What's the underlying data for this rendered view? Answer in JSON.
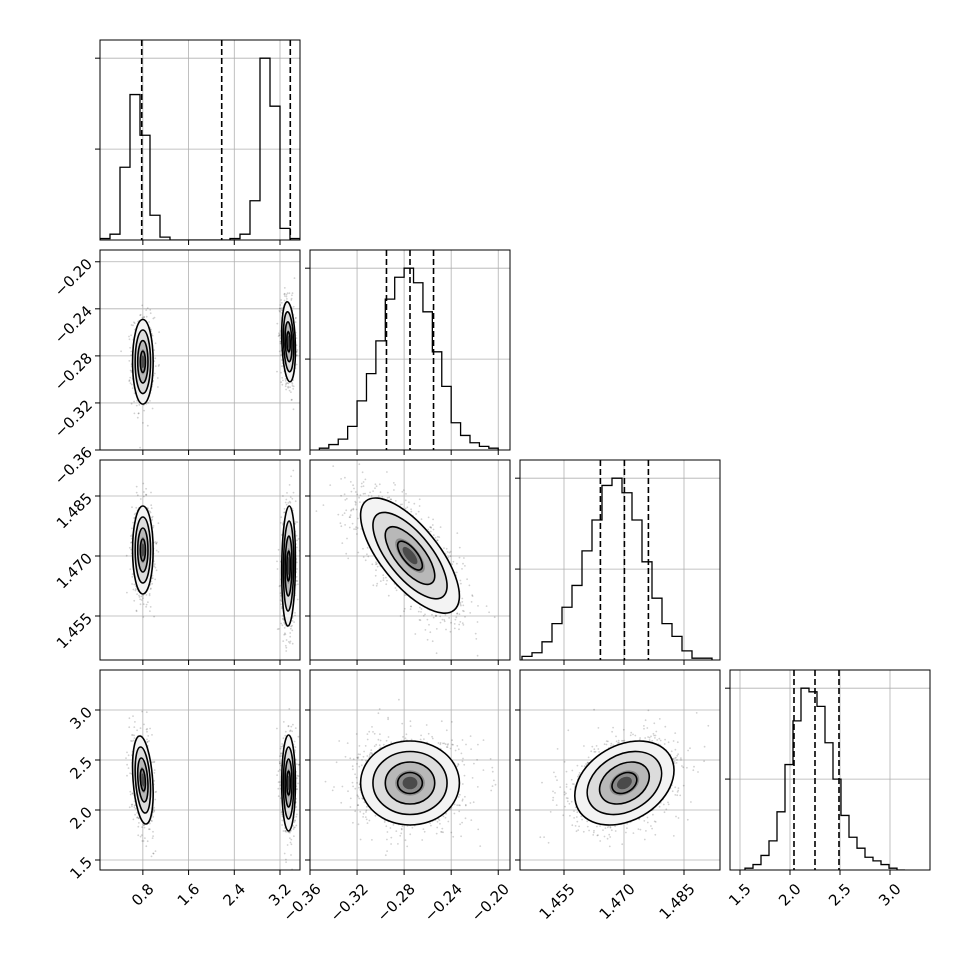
{
  "chart_data": {
    "type": "corner",
    "description_of_panels": "lower-triangle 2D density (scatter + shaded bins + contours), diagonal 1D histograms with dashed quantile lines",
    "parameters": [
      {
        "id": "p0",
        "ticks": [
          0.8,
          1.6,
          2.4,
          3.2
        ],
        "tick_labels": [
          "0.8",
          "1.6",
          "2.4",
          "3.2"
        ],
        "range": [
          0.05,
          3.55
        ],
        "quantiles": [
          0.78,
          2.18,
          3.38
        ],
        "hist": {
          "edges": [
            0.05,
            0.225,
            0.4,
            0.575,
            0.75,
            0.925,
            1.1,
            1.275,
            1.45,
            1.625,
            1.8,
            1.975,
            2.15,
            2.325,
            2.5,
            2.675,
            2.85,
            3.025,
            3.2,
            3.375,
            3.55
          ],
          "counts": [
            0.01,
            0.04,
            0.5,
            1.0,
            0.72,
            0.17,
            0.02,
            0,
            0,
            0,
            0,
            0,
            0,
            0.01,
            0.04,
            0.27,
            1.25,
            0.92,
            0.08,
            0.01
          ]
        }
      },
      {
        "id": "p1",
        "ticks": [
          -0.36,
          -0.32,
          -0.28,
          -0.24,
          -0.2
        ],
        "tick_labels": [
          "−0.36",
          "−0.32",
          "−0.28",
          "−0.24",
          "−0.20"
        ],
        "range": [
          -0.36,
          -0.19
        ],
        "quantiles": [
          -0.295,
          -0.275,
          -0.255
        ],
        "hist": {
          "edges": [
            -0.352,
            -0.344,
            -0.336,
            -0.328,
            -0.32,
            -0.312,
            -0.304,
            -0.296,
            -0.288,
            -0.28,
            -0.272,
            -0.264,
            -0.256,
            -0.248,
            -0.24,
            -0.232,
            -0.224,
            -0.216,
            -0.208,
            -0.2
          ],
          "counts": [
            0.01,
            0.03,
            0.06,
            0.13,
            0.27,
            0.42,
            0.6,
            0.83,
            0.95,
            1.0,
            0.92,
            0.76,
            0.54,
            0.35,
            0.15,
            0.08,
            0.04,
            0.02,
            0.01
          ]
        }
      },
      {
        "id": "p2",
        "ticks": [
          1.455,
          1.47,
          1.485
        ],
        "tick_labels": [
          "1.455",
          "1.470",
          "1.485"
        ],
        "range": [
          1.444,
          1.494
        ],
        "quantiles": [
          1.4641,
          1.4701,
          1.4761
        ],
        "hist": {
          "edges": [
            1.4445,
            1.447,
            1.4495,
            1.452,
            1.4545,
            1.457,
            1.4595,
            1.462,
            1.4645,
            1.467,
            1.4695,
            1.472,
            1.4745,
            1.477,
            1.4795,
            1.482,
            1.4845,
            1.487,
            1.4895,
            1.492
          ],
          "counts": [
            0.02,
            0.04,
            0.1,
            0.2,
            0.29,
            0.41,
            0.6,
            0.77,
            0.96,
            1.0,
            0.92,
            0.77,
            0.54,
            0.34,
            0.2,
            0.13,
            0.05,
            0.01,
            0.01
          ]
        }
      },
      {
        "id": "p3",
        "ticks": [
          1.5,
          2.0,
          2.5,
          3.0
        ],
        "tick_labels": [
          "1.5",
          "2.0",
          "2.5",
          "3.0"
        ],
        "range": [
          1.4,
          3.4
        ],
        "quantiles": [
          2.04,
          2.25,
          2.49
        ],
        "hist": {
          "edges": [
            1.55,
            1.63,
            1.71,
            1.79,
            1.87,
            1.95,
            2.03,
            2.11,
            2.19,
            2.27,
            2.35,
            2.43,
            2.51,
            2.59,
            2.67,
            2.75,
            2.83,
            2.91,
            2.99,
            3.07,
            3.15
          ],
          "counts": [
            0.01,
            0.03,
            0.08,
            0.16,
            0.32,
            0.58,
            0.82,
            1.0,
            0.98,
            0.9,
            0.7,
            0.5,
            0.3,
            0.18,
            0.12,
            0.07,
            0.05,
            0.03,
            0.01,
            0.0
          ]
        }
      }
    ],
    "clusters_2d": {
      "1_0": [
        {
          "cx": 0.8,
          "cy": -0.285,
          "sx": 0.09,
          "sy": 0.018,
          "rho": 0.0,
          "n": 650
        },
        {
          "cx": 3.35,
          "cy": -0.268,
          "sx": 0.06,
          "sy": 0.017,
          "rho": -0.2,
          "n": 700
        }
      ],
      "2_0": [
        {
          "cx": 0.8,
          "cy": 1.4715,
          "sx": 0.09,
          "sy": 0.0055,
          "rho": 0.0,
          "n": 650
        },
        {
          "cx": 3.35,
          "cy": 1.4675,
          "sx": 0.06,
          "sy": 0.0075,
          "rho": 0.1,
          "n": 700
        }
      ],
      "2_1": [
        {
          "cx": -0.275,
          "cy": 1.4701,
          "sx": 0.021,
          "sy": 0.0072,
          "rho": -0.7,
          "n": 1500
        }
      ],
      "3_0": [
        {
          "cx": 0.8,
          "cy": 2.3,
          "sx": 0.09,
          "sy": 0.22,
          "rho": -0.3,
          "n": 650
        },
        {
          "cx": 3.35,
          "cy": 2.27,
          "sx": 0.06,
          "sy": 0.24,
          "rho": 0.0,
          "n": 700
        }
      ],
      "3_1": [
        {
          "cx": -0.275,
          "cy": 2.27,
          "sx": 0.021,
          "sy": 0.21,
          "rho": 0.0,
          "n": 1500
        }
      ],
      "3_2": [
        {
          "cx": 1.4701,
          "cy": 2.27,
          "sx": 0.0062,
          "sy": 0.21,
          "rho": 0.3,
          "n": 1500
        }
      ]
    },
    "grid": true
  }
}
